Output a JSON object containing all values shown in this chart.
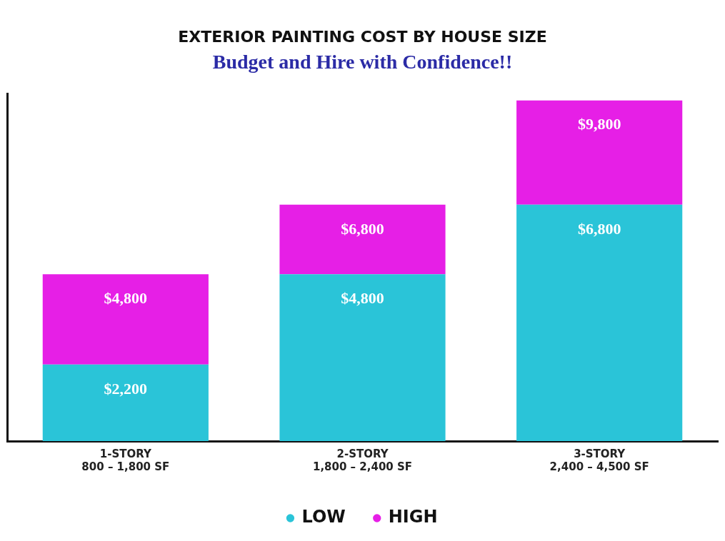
{
  "chart_data": {
    "type": "bar",
    "title": "EXTERIOR PAINTING COST BY HOUSE SIZE",
    "subtitle": "Budget and Hire with Confidence!!",
    "categories": [
      "1-STORY\n800 – 1,800 SF",
      "2-STORY\n1,800 – 2,400 SF",
      "3-STORY\n2,400 – 4,500 SF"
    ],
    "stacked": true,
    "series": [
      {
        "name": "LOW",
        "color": "#2ac4d8",
        "values": [
          2200,
          4800,
          6800
        ],
        "value_labels": [
          "$2,200",
          "$4,800",
          "$6,800"
        ]
      },
      {
        "name": "HIGH",
        "color": "#e61fe6",
        "values": [
          2600,
          2000,
          3000
        ]
      }
    ],
    "totals": [
      "$4,800",
      "$6,800",
      "$9,800"
    ],
    "legend": "bottom",
    "tick_labels": "x",
    "grid": false
  }
}
